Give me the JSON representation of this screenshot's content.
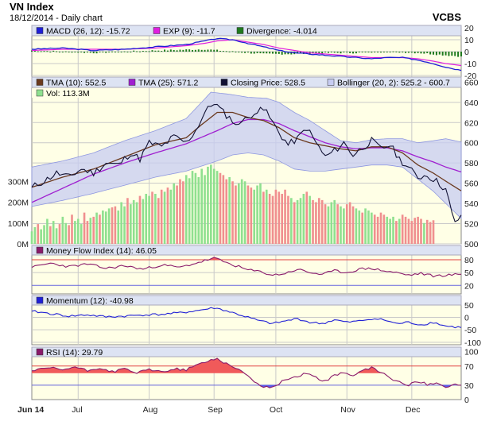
{
  "header": {
    "title": "VN Index",
    "subtitle": "18/12/2014 - Daily chart",
    "broker": "VCBS"
  },
  "colors": {
    "panel_bg": "#ffffe6",
    "legend_bg": "#dde3f3",
    "grid": "#c9c9c9",
    "macd": "#1f1fd6",
    "signal": "#e01ee0",
    "divergence": "#1f7a1f",
    "tma10": "#6b3a1f",
    "tma25": "#a020d0",
    "close": "#111133",
    "boll_fill": "#c7ccf2",
    "boll_edge": "#8f98e0",
    "vol_up": "#8fe08f",
    "vol_down": "#f08f8f",
    "mfi": "#8a1a6a",
    "mom": "#1f1fd6",
    "rsi": "#8a1a6a",
    "red_line": "#e04040",
    "blue_line": "#6666dd",
    "rsi_hi_fill": "#f05a5a",
    "rsi_lo_fill": "#5a5ae8",
    "mfi_hi_fill": "#f05a5a"
  },
  "x_axis": {
    "labels": [
      {
        "text": "Jun 14",
        "day": 0,
        "bold": true
      },
      {
        "text": "Jul",
        "day": 15
      },
      {
        "text": "Aug",
        "day": 38
      },
      {
        "text": "Sep",
        "day": 59
      },
      {
        "text": "Oct",
        "day": 79
      },
      {
        "text": "Nov",
        "day": 102
      },
      {
        "text": "Dec",
        "day": 123
      }
    ]
  },
  "macd_panel": {
    "legend": [
      {
        "text": "MACD (26, 12): -15.72",
        "icon": "macd-icon"
      },
      {
        "text": "EXP (9): -11.7",
        "icon": "exp-icon"
      },
      {
        "text": "Divergence: -4.014",
        "icon": "divergence-icon"
      }
    ],
    "yticks": [
      "20",
      "10",
      "0",
      "-10",
      "-20"
    ]
  },
  "price_panel": {
    "legend": [
      {
        "text": "TMA (10): 552.5",
        "icon": "tma10-icon"
      },
      {
        "text": "TMA (25): 571.2",
        "icon": "tma25-icon"
      },
      {
        "text": "Closing Price: 528.5",
        "icon": "close-price-icon"
      },
      {
        "text": "Bollinger (20, 2): 525.2 - 600.7",
        "icon": "bollinger-icon"
      }
    ],
    "vol_legend": {
      "text": "Vol: 113.3M",
      "icon": "volume-icon"
    },
    "yticks": [
      "660",
      "640",
      "620",
      "600",
      "580",
      "560",
      "540",
      "520",
      "500"
    ],
    "vol_ticks": [
      "300M",
      "200M",
      "100M",
      "0M"
    ]
  },
  "mfi_panel": {
    "legend": {
      "text": "Money Flow Index (14): 46.05",
      "icon": "mfi-icon"
    },
    "yticks": [
      "80",
      "50",
      "20"
    ]
  },
  "momentum_panel": {
    "legend": {
      "text": "Momentum (12): -40.98",
      "icon": "momentum-icon"
    },
    "yticks": [
      "50",
      "0",
      "-50",
      "-100"
    ]
  },
  "rsi_panel": {
    "legend": {
      "text": "RSI (14): 29.79",
      "icon": "rsi-icon"
    },
    "yticks": [
      "100",
      "70",
      "30",
      "0"
    ]
  },
  "chart_data": {
    "type": "line",
    "title": "VN Index - Daily chart",
    "x_range_days": [
      0,
      139
    ],
    "series_key_points": {
      "close": [
        [
          0,
          556
        ],
        [
          4,
          562
        ],
        [
          8,
          570
        ],
        [
          12,
          566
        ],
        [
          16,
          574
        ],
        [
          20,
          570
        ],
        [
          24,
          580
        ],
        [
          28,
          578
        ],
        [
          32,
          590
        ],
        [
          35,
          584
        ],
        [
          38,
          600
        ],
        [
          42,
          596
        ],
        [
          46,
          606
        ],
        [
          50,
          600
        ],
        [
          53,
          612
        ],
        [
          56,
          630
        ],
        [
          59,
          640
        ],
        [
          62,
          630
        ],
        [
          65,
          622
        ],
        [
          67,
          616
        ],
        [
          69,
          628
        ],
        [
          71,
          622
        ],
        [
          74,
          638
        ],
        [
          77,
          625
        ],
        [
          80,
          610
        ],
        [
          83,
          598
        ],
        [
          86,
          604
        ],
        [
          89,
          615
        ],
        [
          92,
          600
        ],
        [
          95,
          586
        ],
        [
          98,
          592
        ],
        [
          101,
          600
        ],
        [
          104,
          588
        ],
        [
          107,
          595
        ],
        [
          110,
          602
        ],
        [
          113,
          594
        ],
        [
          116,
          598
        ],
        [
          119,
          584
        ],
        [
          122,
          575
        ],
        [
          125,
          566
        ],
        [
          128,
          568
        ],
        [
          131,
          562
        ],
        [
          134,
          554
        ],
        [
          136,
          530
        ],
        [
          137,
          520
        ],
        [
          139,
          528.5
        ]
      ],
      "tma10": [
        [
          0,
          556
        ],
        [
          10,
          566
        ],
        [
          20,
          574
        ],
        [
          30,
          586
        ],
        [
          40,
          598
        ],
        [
          50,
          605
        ],
        [
          55,
          618
        ],
        [
          60,
          630
        ],
        [
          65,
          630
        ],
        [
          70,
          625
        ],
        [
          75,
          622
        ],
        [
          80,
          615
        ],
        [
          85,
          605
        ],
        [
          90,
          600
        ],
        [
          95,
          597
        ],
        [
          100,
          594
        ],
        [
          105,
          592
        ],
        [
          110,
          596
        ],
        [
          115,
          596
        ],
        [
          120,
          590
        ],
        [
          125,
          578
        ],
        [
          130,
          570
        ],
        [
          134,
          562
        ],
        [
          139,
          552.5
        ]
      ],
      "tma25": [
        [
          0,
          541
        ],
        [
          10,
          555
        ],
        [
          20,
          569
        ],
        [
          30,
          580
        ],
        [
          40,
          590
        ],
        [
          50,
          599
        ],
        [
          60,
          612
        ],
        [
          65,
          619
        ],
        [
          70,
          623
        ],
        [
          75,
          623
        ],
        [
          80,
          619
        ],
        [
          85,
          612
        ],
        [
          90,
          606
        ],
        [
          95,
          600
        ],
        [
          100,
          596
        ],
        [
          105,
          594
        ],
        [
          110,
          595
        ],
        [
          115,
          595
        ],
        [
          120,
          592
        ],
        [
          125,
          586
        ],
        [
          130,
          581
        ],
        [
          134,
          576
        ],
        [
          139,
          571.2
        ]
      ],
      "boll_upper": [
        [
          0,
          576
        ],
        [
          10,
          582
        ],
        [
          20,
          590
        ],
        [
          30,
          602
        ],
        [
          40,
          612
        ],
        [
          50,
          624
        ],
        [
          58,
          650
        ],
        [
          64,
          648
        ],
        [
          70,
          645
        ],
        [
          76,
          644
        ],
        [
          80,
          640
        ],
        [
          85,
          630
        ],
        [
          90,
          622
        ],
        [
          95,
          612
        ],
        [
          100,
          602
        ],
        [
          105,
          600
        ],
        [
          110,
          603
        ],
        [
          115,
          604
        ],
        [
          120,
          604
        ],
        [
          125,
          600
        ],
        [
          130,
          602
        ],
        [
          134,
          604
        ],
        [
          139,
          600.7
        ]
      ],
      "boll_lower": [
        [
          0,
          537
        ],
        [
          10,
          543
        ],
        [
          20,
          550
        ],
        [
          30,
          558
        ],
        [
          40,
          566
        ],
        [
          50,
          572
        ],
        [
          56,
          578
        ],
        [
          60,
          582
        ],
        [
          65,
          588
        ],
        [
          70,
          590
        ],
        [
          75,
          588
        ],
        [
          80,
          582
        ],
        [
          85,
          574
        ],
        [
          90,
          572
        ],
        [
          95,
          572
        ],
        [
          100,
          574
        ],
        [
          105,
          576
        ],
        [
          110,
          578
        ],
        [
          115,
          578
        ],
        [
          120,
          576
        ],
        [
          125,
          564
        ],
        [
          130,
          552
        ],
        [
          134,
          540
        ],
        [
          139,
          525.2
        ]
      ],
      "macd": [
        [
          0,
          2
        ],
        [
          10,
          3
        ],
        [
          20,
          1
        ],
        [
          30,
          2
        ],
        [
          40,
          4
        ],
        [
          50,
          6
        ],
        [
          56,
          9
        ],
        [
          60,
          11
        ],
        [
          65,
          10
        ],
        [
          70,
          7
        ],
        [
          75,
          4
        ],
        [
          80,
          1
        ],
        [
          85,
          -1
        ],
        [
          90,
          -2
        ],
        [
          95,
          -3
        ],
        [
          100,
          -4
        ],
        [
          105,
          -5
        ],
        [
          110,
          -6
        ],
        [
          115,
          -5
        ],
        [
          120,
          -5
        ],
        [
          125,
          -7
        ],
        [
          130,
          -10
        ],
        [
          134,
          -13
        ],
        [
          139,
          -15.72
        ]
      ],
      "exp9": [
        [
          0,
          1
        ],
        [
          10,
          2
        ],
        [
          20,
          2
        ],
        [
          30,
          2
        ],
        [
          40,
          3
        ],
        [
          50,
          5
        ],
        [
          56,
          7
        ],
        [
          60,
          9
        ],
        [
          65,
          10
        ],
        [
          70,
          8
        ],
        [
          75,
          6
        ],
        [
          80,
          3
        ],
        [
          85,
          1
        ],
        [
          90,
          -1
        ],
        [
          95,
          -2
        ],
        [
          100,
          -3
        ],
        [
          105,
          -4
        ],
        [
          110,
          -5
        ],
        [
          115,
          -5
        ],
        [
          120,
          -5
        ],
        [
          125,
          -6
        ],
        [
          130,
          -8
        ],
        [
          134,
          -10
        ],
        [
          139,
          -11.7
        ]
      ],
      "divergence": [
        [
          0,
          1
        ],
        [
          20,
          -1
        ],
        [
          40,
          1
        ],
        [
          56,
          2
        ],
        [
          65,
          0
        ],
        [
          75,
          -2
        ],
        [
          85,
          -2
        ],
        [
          95,
          -1
        ],
        [
          105,
          -1
        ],
        [
          115,
          0
        ],
        [
          125,
          -1
        ],
        [
          134,
          -3
        ],
        [
          139,
          -4.014
        ]
      ],
      "mfi": [
        [
          0,
          62
        ],
        [
          6,
          72
        ],
        [
          12,
          64
        ],
        [
          18,
          70
        ],
        [
          24,
          60
        ],
        [
          30,
          66
        ],
        [
          36,
          58
        ],
        [
          42,
          68
        ],
        [
          48,
          62
        ],
        [
          54,
          74
        ],
        [
          59,
          84
        ],
        [
          62,
          76
        ],
        [
          66,
          66
        ],
        [
          70,
          56
        ],
        [
          74,
          52
        ],
        [
          78,
          44
        ],
        [
          82,
          48
        ],
        [
          86,
          58
        ],
        [
          90,
          50
        ],
        [
          94,
          46
        ],
        [
          98,
          54
        ],
        [
          102,
          50
        ],
        [
          106,
          58
        ],
        [
          110,
          60
        ],
        [
          114,
          54
        ],
        [
          118,
          50
        ],
        [
          122,
          44
        ],
        [
          126,
          48
        ],
        [
          130,
          42
        ],
        [
          134,
          44
        ],
        [
          139,
          46.05
        ]
      ],
      "momentum": [
        [
          0,
          25
        ],
        [
          6,
          15
        ],
        [
          12,
          5
        ],
        [
          18,
          10
        ],
        [
          24,
          2
        ],
        [
          30,
          5
        ],
        [
          36,
          10
        ],
        [
          42,
          12
        ],
        [
          48,
          18
        ],
        [
          54,
          28
        ],
        [
          59,
          38
        ],
        [
          62,
          30
        ],
        [
          66,
          15
        ],
        [
          70,
          0
        ],
        [
          74,
          -15
        ],
        [
          78,
          -25
        ],
        [
          82,
          -15
        ],
        [
          86,
          -5
        ],
        [
          90,
          -20
        ],
        [
          94,
          -25
        ],
        [
          98,
          -10
        ],
        [
          102,
          -20
        ],
        [
          106,
          -15
        ],
        [
          110,
          -5
        ],
        [
          114,
          -10
        ],
        [
          118,
          -25
        ],
        [
          122,
          -20
        ],
        [
          126,
          -30
        ],
        [
          130,
          -20
        ],
        [
          134,
          -35
        ],
        [
          139,
          -40.98
        ]
      ],
      "rsi": [
        [
          0,
          60
        ],
        [
          6,
          66
        ],
        [
          10,
          62
        ],
        [
          14,
          68
        ],
        [
          18,
          60
        ],
        [
          22,
          66
        ],
        [
          26,
          58
        ],
        [
          30,
          64
        ],
        [
          34,
          56
        ],
        [
          38,
          62
        ],
        [
          42,
          58
        ],
        [
          46,
          64
        ],
        [
          50,
          62
        ],
        [
          54,
          74
        ],
        [
          58,
          82
        ],
        [
          60,
          86
        ],
        [
          62,
          78
        ],
        [
          65,
          70
        ],
        [
          68,
          58
        ],
        [
          71,
          44
        ],
        [
          74,
          28
        ],
        [
          77,
          24
        ],
        [
          80,
          34
        ],
        [
          83,
          44
        ],
        [
          86,
          48
        ],
        [
          89,
          56
        ],
        [
          92,
          46
        ],
        [
          95,
          38
        ],
        [
          98,
          50
        ],
        [
          101,
          58
        ],
        [
          104,
          48
        ],
        [
          107,
          60
        ],
        [
          110,
          66
        ],
        [
          113,
          58
        ],
        [
          116,
          44
        ],
        [
          119,
          36
        ],
        [
          122,
          30
        ],
        [
          125,
          38
        ],
        [
          128,
          32
        ],
        [
          131,
          36
        ],
        [
          134,
          26
        ],
        [
          137,
          32
        ],
        [
          139,
          29.79
        ]
      ]
    },
    "volume_M": [
      60,
      80,
      95,
      70,
      90,
      120,
      85,
      110,
      75,
      95,
      130,
      100,
      90,
      140,
      110,
      120,
      95,
      150,
      110,
      125,
      130,
      150,
      140,
      160,
      155,
      170,
      175,
      180,
      160,
      200,
      180,
      220,
      190,
      210,
      200,
      230,
      215,
      240,
      230,
      250,
      240,
      220,
      260,
      250,
      270,
      260,
      290,
      280,
      310,
      300,
      330,
      315,
      350,
      340,
      320,
      360,
      330,
      370,
      380,
      360,
      350,
      340,
      330,
      310,
      320,
      300,
      280,
      290,
      310,
      300,
      280,
      270,
      260,
      280,
      290,
      250,
      260,
      240,
      230,
      260,
      250,
      240,
      260,
      230,
      220,
      200,
      210,
      220,
      240,
      250,
      230,
      210,
      200,
      220,
      210,
      190,
      180,
      200,
      210,
      190,
      180,
      170,
      190,
      200,
      180,
      170,
      160,
      150,
      170,
      160,
      150,
      140,
      130,
      150,
      140,
      130,
      120,
      130,
      110,
      120,
      140,
      130,
      120,
      110,
      125,
      130,
      120,
      100,
      115,
      105,
      113.3
    ],
    "volume_up_flags": "mixed",
    "price_ylim": [
      500,
      665
    ],
    "macd_ylim": [
      -22,
      22
    ],
    "mfi_ylim": [
      0,
      100
    ],
    "momentum_ylim": [
      -110,
      60
    ],
    "rsi_ylim": [
      0,
      105
    ],
    "volume_ylim_M": [
      0,
      800
    ]
  }
}
